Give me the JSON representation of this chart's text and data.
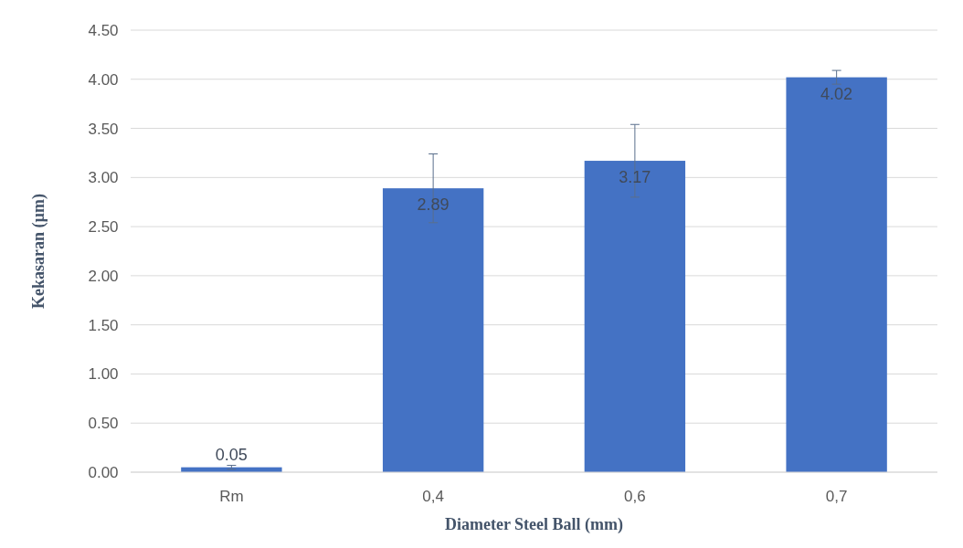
{
  "chart_data": {
    "type": "bar",
    "xlabel": "Diameter Steel Ball (mm)",
    "ylabel": "Kekasaran (µm)",
    "categories": [
      "Rm",
      "0,4",
      "0,6",
      "0,7"
    ],
    "values": [
      0.05,
      2.89,
      3.17,
      4.02
    ],
    "errors": [
      0.02,
      0.35,
      0.37,
      0.07
    ],
    "color": "#4472c4",
    "ylim": [
      0,
      4.5
    ],
    "yticks": [
      {
        "value": 0,
        "label": "0.00"
      },
      {
        "value": 0.5,
        "label": "0.50"
      },
      {
        "value": 1,
        "label": "1.00"
      },
      {
        "value": 1.5,
        "label": "1.50"
      },
      {
        "value": 2,
        "label": "2.00"
      },
      {
        "value": 2.5,
        "label": "2.50"
      },
      {
        "value": 3,
        "label": "3.00"
      },
      {
        "value": 3.5,
        "label": "3.50"
      },
      {
        "value": 4,
        "label": "4.00"
      },
      {
        "value": 4.5,
        "label": "4.50"
      }
    ],
    "grid": "y",
    "data_labels": true
  }
}
